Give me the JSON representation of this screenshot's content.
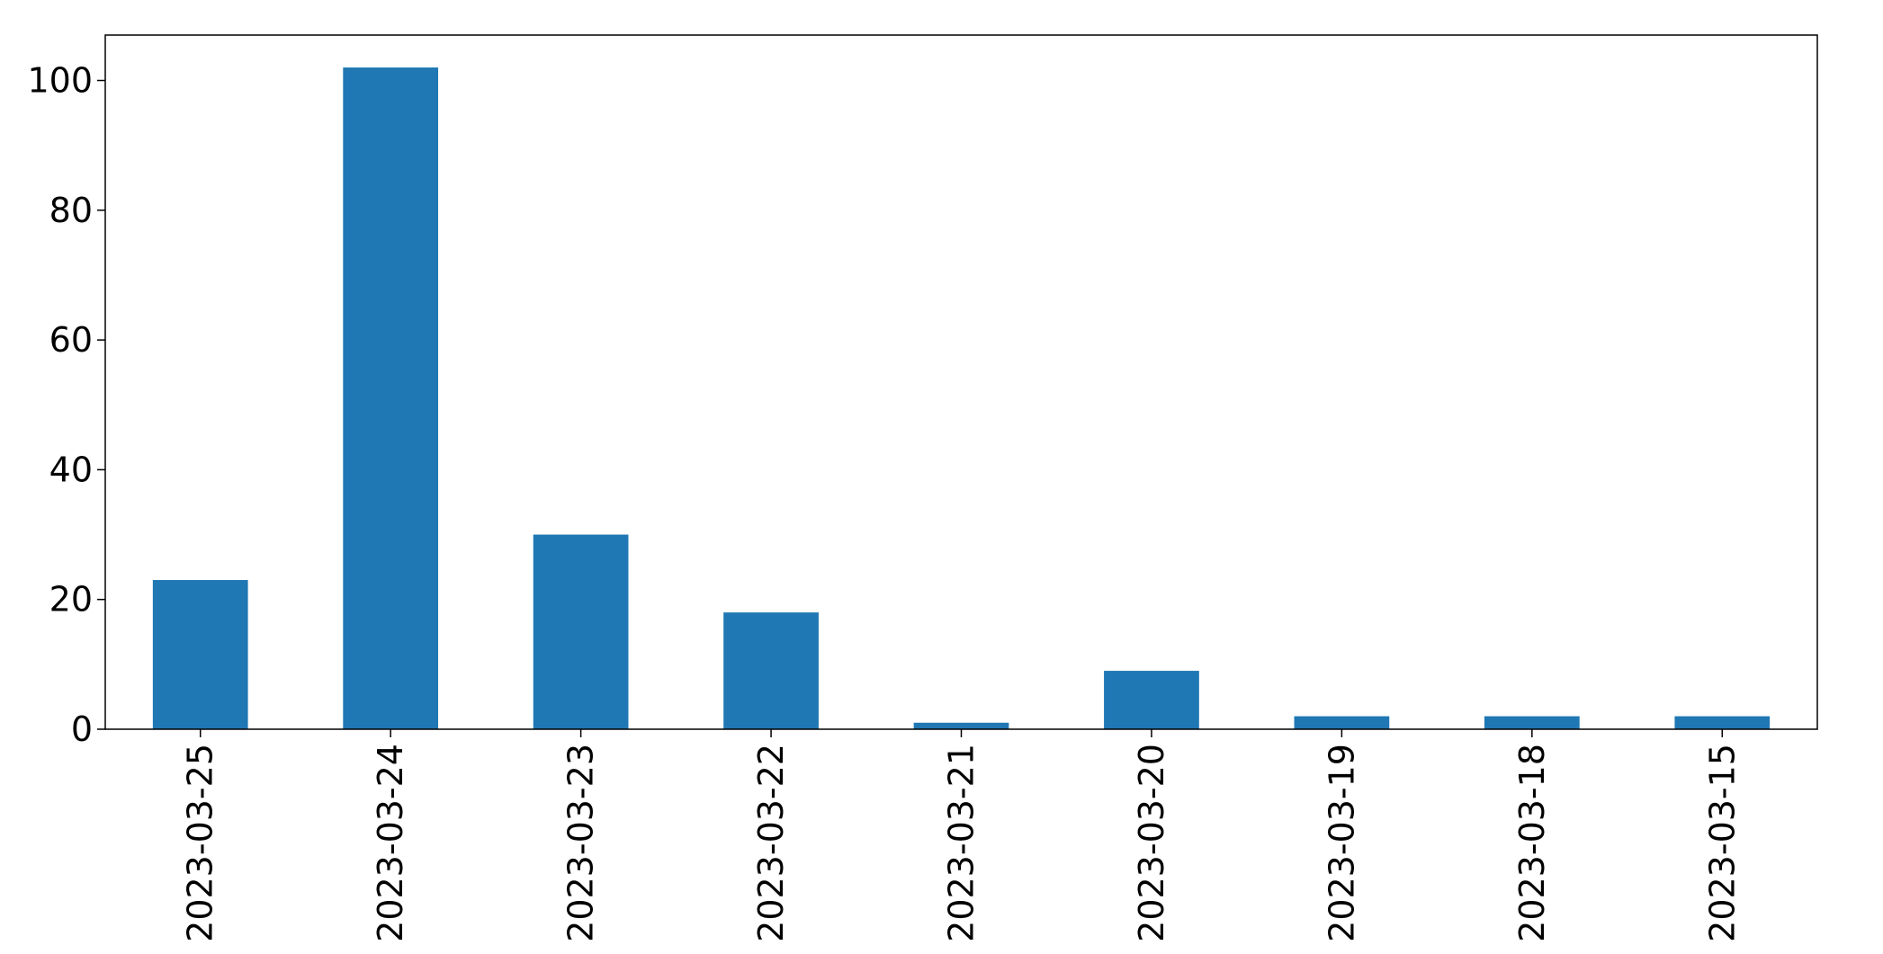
{
  "chart_data": {
    "type": "bar",
    "title": "",
    "xlabel": "",
    "ylabel": "",
    "categories": [
      "2023-03-25",
      "2023-03-24",
      "2023-03-23",
      "2023-03-22",
      "2023-03-21",
      "2023-03-20",
      "2023-03-19",
      "2023-03-18",
      "2023-03-15"
    ],
    "values": [
      23,
      102,
      30,
      18,
      1,
      9,
      2,
      2,
      2
    ],
    "ylim": [
      0,
      107
    ],
    "yticks": [
      0,
      20,
      40,
      60,
      80,
      100
    ],
    "grid": false,
    "legend": "none",
    "bar_color": "#1f77b4"
  }
}
